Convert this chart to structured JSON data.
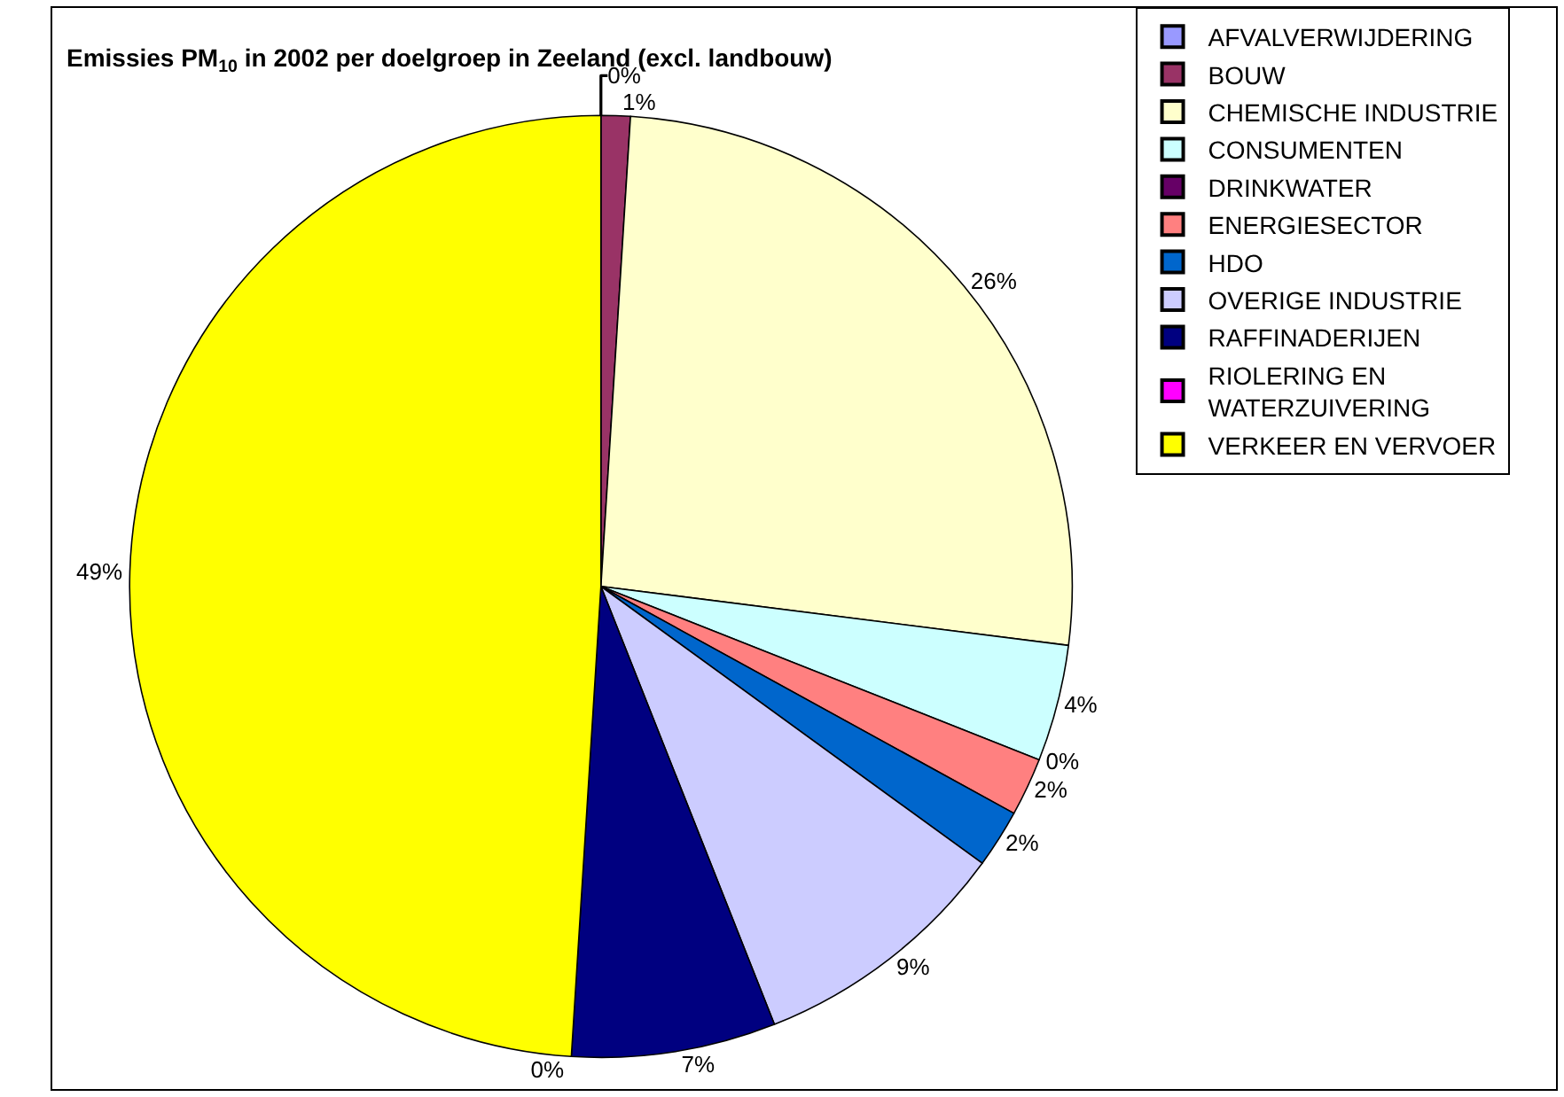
{
  "chart_data": {
    "type": "pie",
    "title": "Emissies PM$_{10}$ in 2002 per doelgroep in Zeeland (excl. landbouw)",
    "categories": [
      "AFVALVERWIJDERING",
      "BOUW",
      "CHEMISCHE INDUSTRIE",
      "CONSUMENTEN",
      "DRINKWATER",
      "ENERGIESECTOR",
      "HDO",
      "OVERIGE INDUSTRIE",
      "RAFFINADERIJEN",
      "RIOLERING EN WATERZUIVERING",
      "VERKEER EN VERVOER"
    ],
    "values": [
      0,
      1,
      26,
      4,
      0,
      2,
      2,
      9,
      7,
      0,
      49
    ],
    "value_labels": [
      "0%",
      "1%",
      "26%",
      "4%",
      "0%",
      "2%",
      "2%",
      "9%",
      "7%",
      "0%",
      "49%"
    ],
    "colors": [
      "#9999ff",
      "#993366",
      "#ffffcc",
      "#ccffff",
      "#660066",
      "#ff8080",
      "#0066cc",
      "#ccccff",
      "#000080",
      "#ff00ff",
      "#ffff00"
    ],
    "legend": "right"
  }
}
